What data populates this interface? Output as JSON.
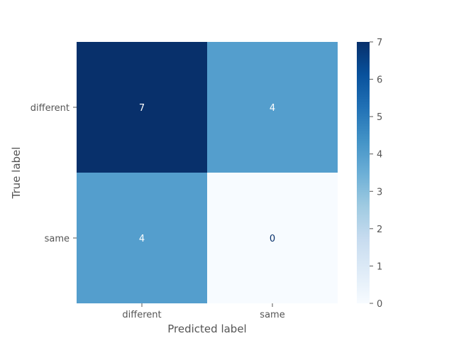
{
  "chart_data": {
    "type": "heatmap",
    "title": "",
    "xlabel": "Predicted label",
    "ylabel": "True label",
    "x_categories": [
      "different",
      "same"
    ],
    "y_categories": [
      "different",
      "same"
    ],
    "values": [
      [
        7,
        4
      ],
      [
        4,
        0
      ]
    ],
    "colormap": "Blues",
    "colorbar": {
      "range": [
        0,
        7
      ],
      "ticks": [
        "0",
        "1",
        "2",
        "3",
        "4",
        "5",
        "6",
        "7"
      ]
    },
    "grid": false
  }
}
